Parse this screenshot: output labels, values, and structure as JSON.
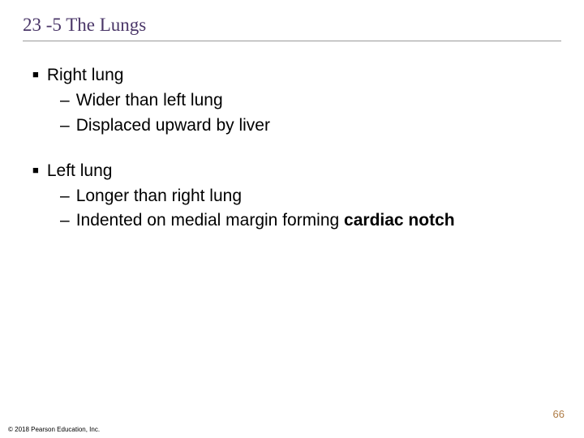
{
  "title": "23 -5 The Lungs",
  "bullets": {
    "b1": "Right lung",
    "b1_1": "Wider than left lung",
    "b1_2": "Displaced upward by liver",
    "b2": "Left lung",
    "b2_1": "Longer than right lung",
    "b2_2_pre": "Indented on medial margin forming ",
    "b2_2_bold": "cardiac notch"
  },
  "page_number": "66",
  "copyright": "© 2018 Pearson Education, Inc.",
  "colors": {
    "title_color": "#4a3668",
    "page_number_color": "#af7d47",
    "background": "#ffffff"
  },
  "typography": {
    "title_fontsize": 23,
    "body_fontsize": 21,
    "pagenum_fontsize": 13,
    "copyright_fontsize": 8
  }
}
